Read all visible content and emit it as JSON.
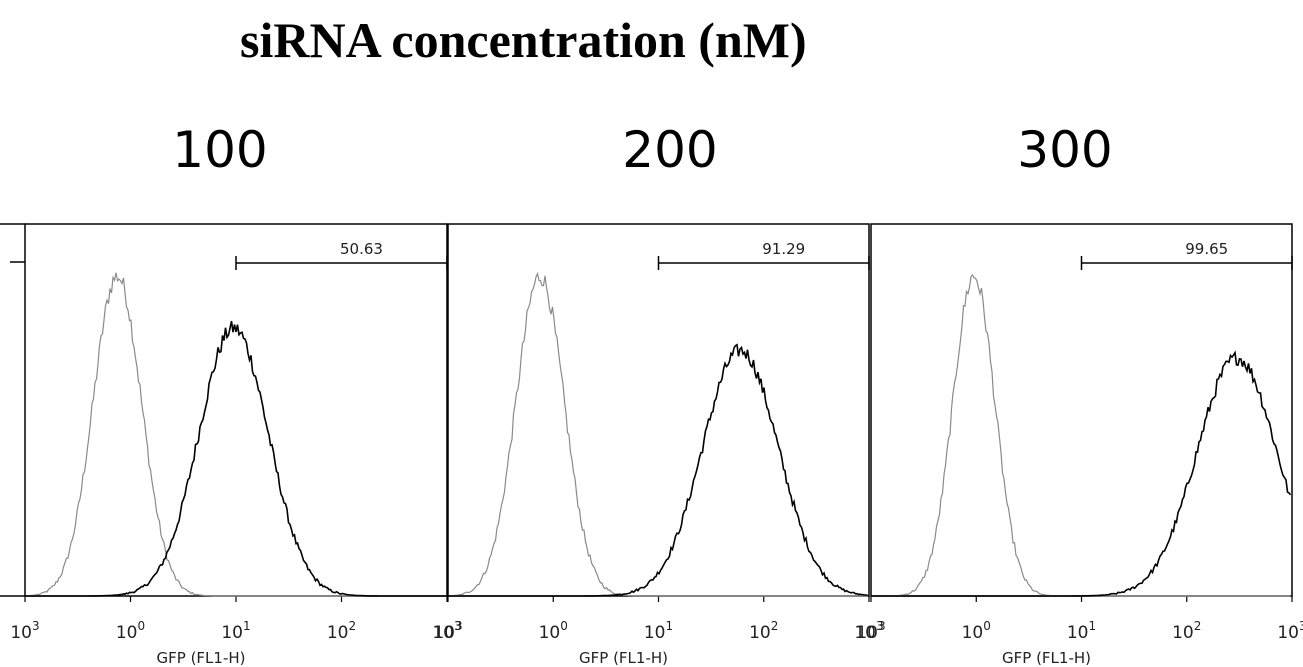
{
  "title": "siRNA concentration (nM)",
  "colors": {
    "control": "#8a8a8a",
    "sirna": "#000000",
    "axis": "#000000"
  },
  "chart_data": [
    {
      "type": "line",
      "concentration": "100",
      "xlabel": "GFP (FL1-H)",
      "x_scale": "log",
      "xlim": [
        0.1,
        1000
      ],
      "x_ticks": [
        {
          "base": "10",
          "exp": "3"
        },
        {
          "base": "10",
          "exp": "0"
        },
        {
          "base": "10",
          "exp": "1"
        },
        {
          "base": "10",
          "exp": "2"
        },
        {
          "base": "10",
          "exp": "3"
        }
      ],
      "gate": {
        "label": "50.63",
        "from": 10,
        "to": 1000
      },
      "series": [
        {
          "role": "control",
          "peak_x": 0.75,
          "width": 0.23,
          "peak": 0.86
        },
        {
          "role": "sirna",
          "peak_x": 9.5,
          "width": 0.33,
          "peak": 0.72
        }
      ]
    },
    {
      "type": "line",
      "concentration": "200",
      "xlabel": "GFP (FL1-H)",
      "x_scale": "log",
      "xlim": [
        0.1,
        1000
      ],
      "x_ticks": [
        {
          "base": "10",
          "exp": "3"
        },
        {
          "base": "10",
          "exp": "0"
        },
        {
          "base": "10",
          "exp": "1"
        },
        {
          "base": "10",
          "exp": "2"
        },
        {
          "base": "10",
          "exp": "3"
        }
      ],
      "gate": {
        "label": "91.29",
        "from": 10,
        "to": 1000
      },
      "series": [
        {
          "role": "control",
          "peak_x": 0.75,
          "width": 0.23,
          "peak": 0.86
        },
        {
          "role": "sirna",
          "peak_x": 60,
          "width": 0.36,
          "peak": 0.66
        }
      ]
    },
    {
      "type": "line",
      "concentration": "300",
      "xlabel": "GFP (FL1-H)",
      "x_scale": "log",
      "xlim": [
        0.1,
        1000
      ],
      "x_ticks": [
        {
          "base": "10",
          "exp": "3"
        },
        {
          "base": "10",
          "exp": "0"
        },
        {
          "base": "10",
          "exp": "1"
        },
        {
          "base": "10",
          "exp": "2"
        },
        {
          "base": "10",
          "exp": "3"
        }
      ],
      "gate": {
        "label": "99.65",
        "from": 10,
        "to": 1000
      },
      "series": [
        {
          "role": "control",
          "peak_x": 0.95,
          "width": 0.2,
          "peak": 0.86
        },
        {
          "role": "sirna",
          "peak_x": 300,
          "width": 0.38,
          "peak": 0.64
        }
      ]
    }
  ]
}
